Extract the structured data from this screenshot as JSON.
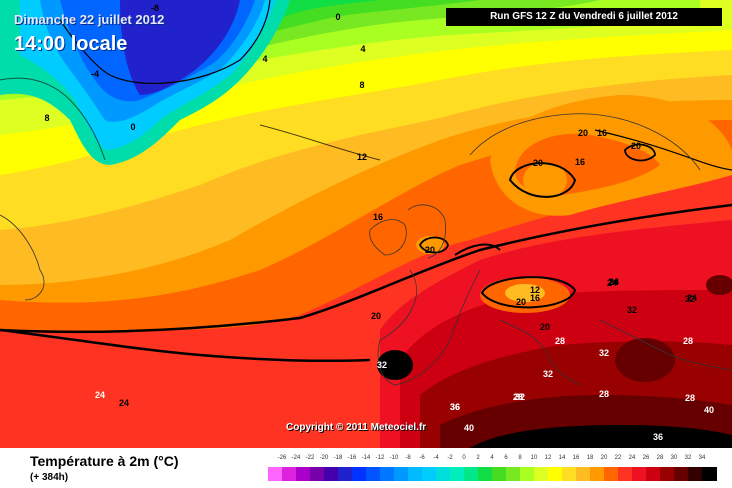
{
  "header": {
    "date": "Dimanche 22 juillet 2012",
    "time": "14:00 locale",
    "run": "Run GFS 12 Z du Vendredi 6 juillet 2012"
  },
  "copyright": "Copyright © 2011 Meteociel.fr",
  "footer": {
    "title": "Température à 2m (°C)",
    "subtitle": "(+ 384h)"
  },
  "legend": {
    "labels": [
      "-26",
      "-24",
      "-22",
      "-20",
      "-18",
      "-16",
      "-14",
      "-12",
      "-10",
      "-8",
      "-6",
      "-4",
      "-2",
      "0",
      "2",
      "4",
      "6",
      "8",
      "10",
      "12",
      "14",
      "16",
      "18",
      "20",
      "22",
      "24",
      "26",
      "28",
      "30",
      "32",
      "34"
    ],
    "colors": [
      "#ff66ff",
      "#dd22dd",
      "#aa00cc",
      "#7700aa",
      "#4400aa",
      "#2222cc",
      "#0033ff",
      "#0055ff",
      "#0077ff",
      "#0099ff",
      "#00bbff",
      "#00ccff",
      "#00dddd",
      "#00eebb",
      "#00e888",
      "#11dd44",
      "#44dd22",
      "#77e822",
      "#aaff22",
      "#ddff22",
      "#ffff00",
      "#ffdd22",
      "#ffbb22",
      "#ff9900",
      "#ff6600",
      "#ff3322",
      "#ee1122",
      "#cc0011",
      "#990000",
      "#660000",
      "#330000",
      "#000000"
    ]
  },
  "map": {
    "contours": [
      {
        "value": "-8"
      },
      {
        "value": "-4"
      },
      {
        "value": "0"
      },
      {
        "value": "0"
      },
      {
        "value": "4"
      },
      {
        "value": "4"
      },
      {
        "value": "8"
      },
      {
        "value": "8"
      },
      {
        "value": "12"
      },
      {
        "value": "16"
      },
      {
        "value": "20"
      },
      {
        "value": "20"
      },
      {
        "value": "20"
      },
      {
        "value": "16"
      },
      {
        "value": "20"
      },
      {
        "value": "16"
      },
      {
        "value": "20"
      },
      {
        "value": "12"
      },
      {
        "value": "16"
      },
      {
        "value": "20"
      },
      {
        "value": "20"
      },
      {
        "value": "24"
      },
      {
        "value": "24"
      },
      {
        "value": "24"
      },
      {
        "value": "24"
      },
      {
        "value": "28"
      },
      {
        "value": "28"
      },
      {
        "value": "32"
      },
      {
        "value": "32"
      },
      {
        "value": "32"
      },
      {
        "value": "32"
      },
      {
        "value": "32"
      },
      {
        "value": "28"
      },
      {
        "value": "28"
      },
      {
        "value": "36"
      },
      {
        "value": "36"
      },
      {
        "value": "40"
      },
      {
        "value": "40"
      },
      {
        "value": "36"
      },
      {
        "value": "32"
      },
      {
        "value": "24"
      },
      {
        "value": "28"
      }
    ]
  }
}
